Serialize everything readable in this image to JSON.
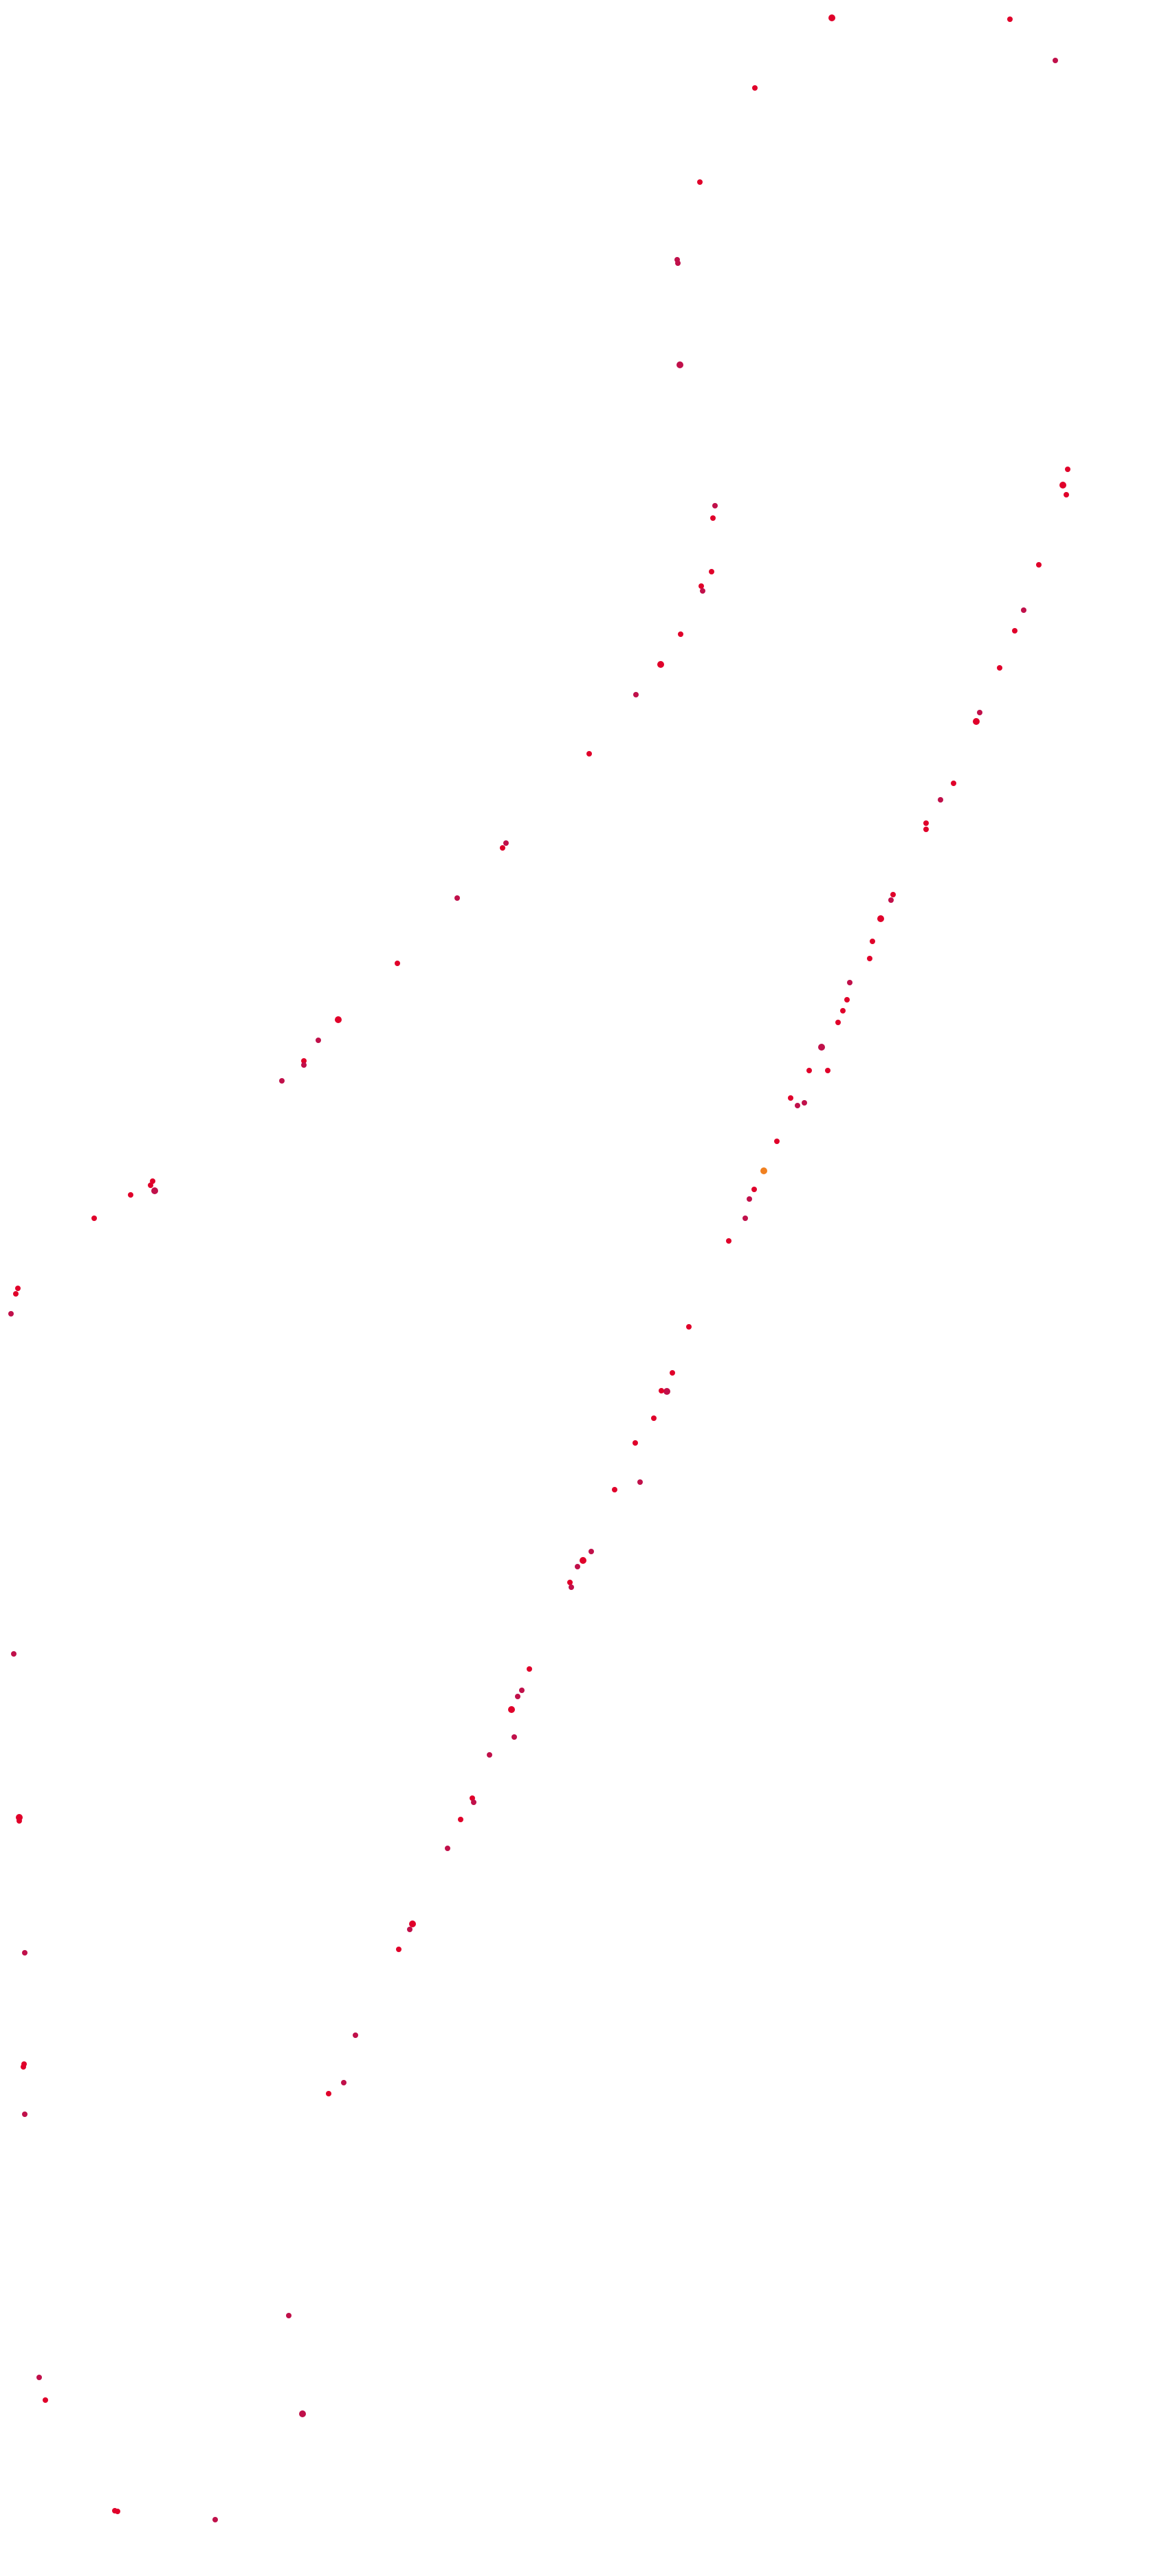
{
  "colors": {
    "background": "#ffffff",
    "dot_primary": "#e0002a",
    "dot_secondary": "#c0104a",
    "dot_accent": "#f08020"
  },
  "scene": {
    "description_tags": [
      "scatter-dots",
      "red-specks",
      "white-field"
    ],
    "dots": [
      {
        "c": "p"
      },
      {
        "c": "p"
      },
      {
        "c": "s"
      },
      {
        "c": "p"
      },
      {
        "c": "p"
      },
      {
        "c": "s"
      },
      {
        "c": "s"
      },
      {
        "c": "s"
      },
      {
        "c": "s"
      },
      {
        "c": "p"
      },
      {
        "c": "p"
      },
      {
        "c": "p"
      },
      {
        "c": "s"
      },
      {
        "c": "p"
      },
      {
        "c": "p"
      },
      {
        "c": "s"
      },
      {
        "c": "p"
      },
      {
        "c": "s"
      },
      {
        "c": "p"
      },
      {
        "c": "s"
      },
      {
        "c": "p"
      },
      {
        "c": "p"
      },
      {
        "c": "s"
      },
      {
        "c": "p"
      },
      {
        "c": "s"
      },
      {
        "c": "s"
      },
      {
        "c": "p"
      },
      {
        "c": "p"
      },
      {
        "c": "s"
      },
      {
        "c": "p"
      },
      {
        "c": "p"
      },
      {
        "c": "p"
      },
      {
        "c": "p"
      },
      {
        "c": "s"
      },
      {
        "c": "p"
      },
      {
        "c": "p"
      },
      {
        "c": "p"
      },
      {
        "c": "p"
      },
      {
        "c": "s"
      },
      {
        "c": "p"
      },
      {
        "c": "p"
      },
      {
        "c": "s"
      },
      {
        "c": "p"
      },
      {
        "c": "p"
      },
      {
        "c": "s"
      },
      {
        "c": "p"
      },
      {
        "c": "p"
      },
      {
        "c": "p"
      },
      {
        "c": "s"
      },
      {
        "c": "p"
      },
      {
        "c": "p"
      },
      {
        "c": "p"
      },
      {
        "c": "s"
      },
      {
        "c": "p"
      },
      {
        "c": "p"
      },
      {
        "c": "p"
      },
      {
        "c": "s"
      },
      {
        "c": "p"
      },
      {
        "c": "p"
      },
      {
        "c": "s"
      },
      {
        "c": "s"
      },
      {
        "c": "p"
      },
      {
        "c": "p"
      },
      {
        "c": "a"
      },
      {
        "c": "p"
      },
      {
        "c": "s"
      },
      {
        "c": "s"
      },
      {
        "c": "p"
      },
      {
        "c": "p"
      },
      {
        "c": "p"
      },
      {
        "c": "s"
      },
      {
        "c": "p"
      },
      {
        "c": "p"
      },
      {
        "c": "p"
      },
      {
        "c": "s"
      },
      {
        "c": "p"
      },
      {
        "c": "s"
      },
      {
        "c": "p"
      },
      {
        "c": "s"
      },
      {
        "c": "p"
      },
      {
        "c": "s"
      },
      {
        "c": "p"
      },
      {
        "c": "s"
      },
      {
        "c": "s"
      },
      {
        "c": "p"
      },
      {
        "c": "s"
      },
      {
        "c": "s"
      },
      {
        "c": "p"
      },
      {
        "c": "s"
      },
      {
        "c": "p"
      },
      {
        "c": "s"
      },
      {
        "c": "p"
      },
      {
        "c": "s"
      },
      {
        "c": "p"
      },
      {
        "c": "s"
      },
      {
        "c": "s"
      },
      {
        "c": "p"
      },
      {
        "c": "s"
      }
    ]
  }
}
